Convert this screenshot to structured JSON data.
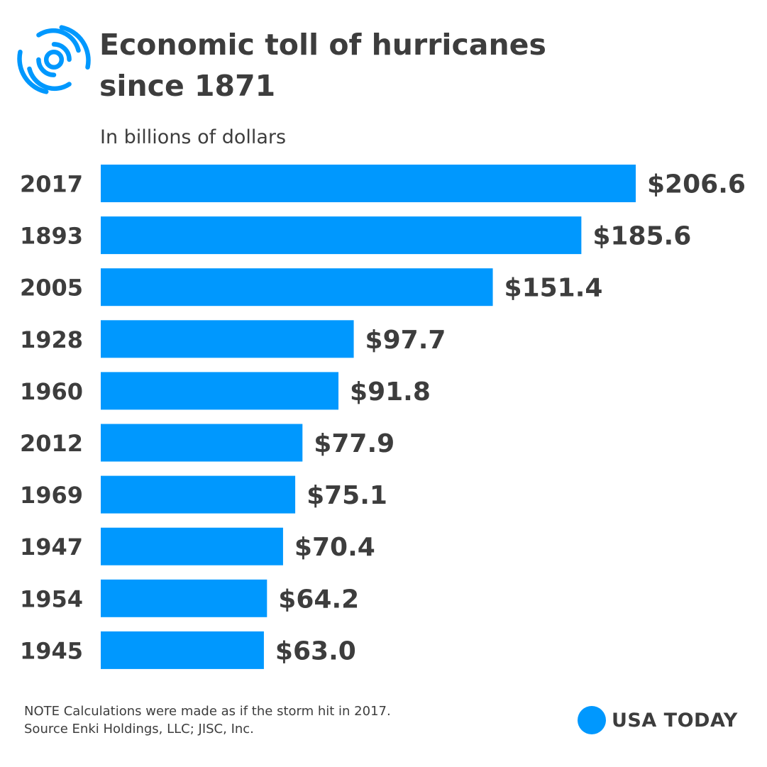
{
  "header": {
    "title": "Economic toll of hurricanes since 1871",
    "subtitle": "In billions of dollars",
    "icon": "hurricane-icon"
  },
  "colors": {
    "bar": "#0098fe",
    "text": "#3d3d3d"
  },
  "chart_data": {
    "type": "bar",
    "orientation": "horizontal",
    "title": "Economic toll of hurricanes since 1871",
    "unit_label": "In billions of dollars",
    "categories": [
      "2017",
      "1893",
      "2005",
      "1928",
      "1960",
      "2012",
      "1969",
      "1947",
      "1954",
      "1945"
    ],
    "values": [
      206.6,
      185.6,
      151.4,
      97.7,
      91.8,
      77.9,
      75.1,
      70.4,
      64.2,
      63.0
    ],
    "value_labels": [
      "$206.6",
      "$185.6",
      "$151.4",
      "$97.7",
      "$91.8",
      "$77.9",
      "$75.1",
      "$70.4",
      "$64.2",
      "$63.0"
    ],
    "xlim": [
      0,
      206.6
    ],
    "grid": false,
    "legend": "none"
  },
  "footer": {
    "note": "NOTE Calculations were made as if the storm hit in 2017.",
    "source": "Source Enki Holdings, LLC; JISC, Inc."
  },
  "brand": {
    "name": "USA TODAY"
  }
}
